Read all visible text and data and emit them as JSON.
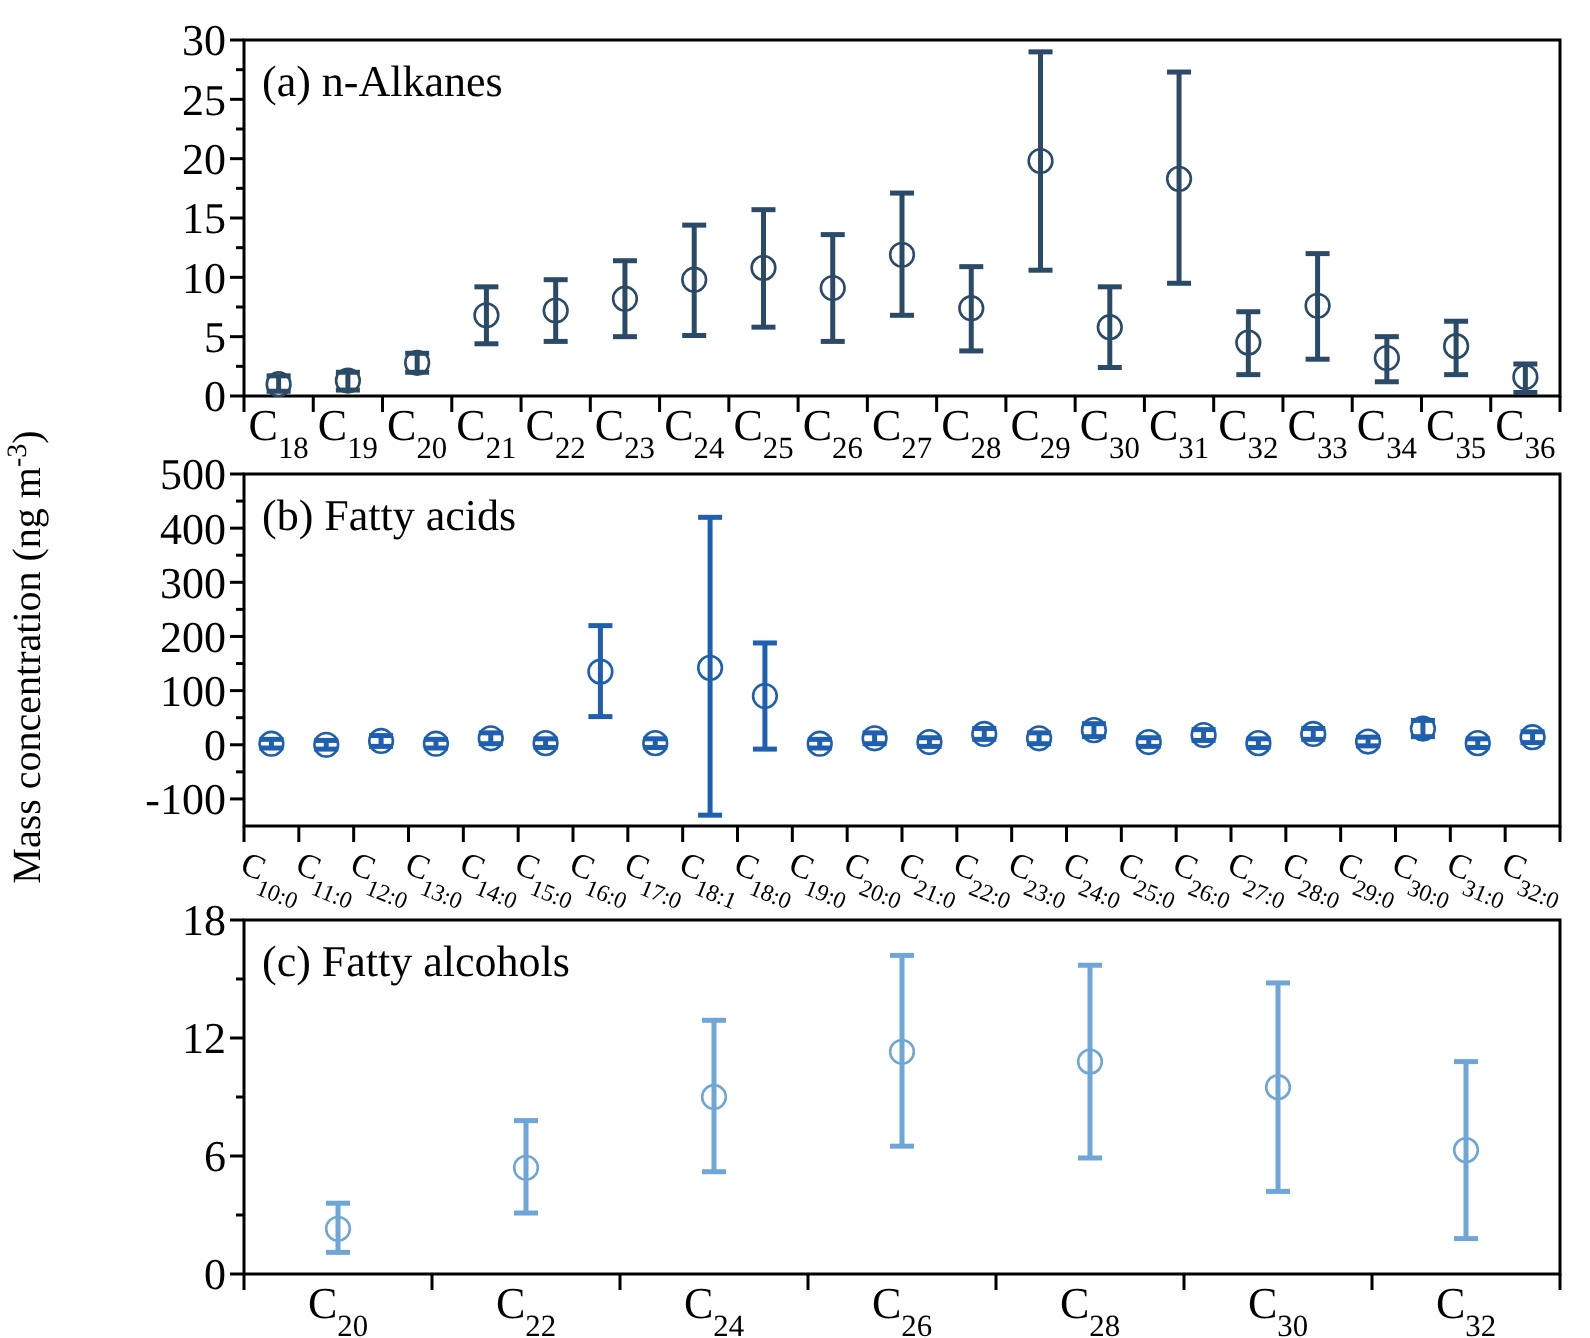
{
  "chart_data": [
    {
      "type": "scatter",
      "title": "(a) n-Alkanes",
      "ylabel": "Mass concentration (ng m$^{-3}$)",
      "categories": [
        "C$_{18}$",
        "C$_{19}$",
        "C$_{20}$",
        "C$_{21}$",
        "C$_{22}$",
        "C$_{23}$",
        "C$_{24}$",
        "C$_{25}$",
        "C$_{26}$",
        "C$_{27}$",
        "C$_{28}$",
        "C$_{29}$",
        "C$_{30}$",
        "C$_{31}$",
        "C$_{32}$",
        "C$_{33}$",
        "C$_{34}$",
        "C$_{35}$",
        "C$_{36}$"
      ],
      "series": [
        {
          "color": "#2a4a68",
          "values": [
            1.0,
            1.3,
            2.8,
            6.8,
            7.2,
            8.2,
            9.8,
            10.8,
            9.1,
            11.9,
            7.4,
            19.8,
            5.8,
            18.3,
            4.5,
            7.6,
            3.2,
            4.2,
            1.6
          ],
          "errors": [
            [
              0.4,
              1.7
            ],
            [
              0.5,
              2.0
            ],
            [
              2.0,
              3.6
            ],
            [
              4.4,
              9.2
            ],
            [
              4.6,
              9.8
            ],
            [
              5.0,
              11.4
            ],
            [
              5.1,
              14.4
            ],
            [
              5.8,
              15.7
            ],
            [
              4.6,
              13.6
            ],
            [
              6.8,
              17.1
            ],
            [
              3.8,
              10.9
            ],
            [
              10.6,
              29.0
            ],
            [
              2.4,
              9.2
            ],
            [
              9.5,
              27.3
            ],
            [
              1.8,
              7.1
            ],
            [
              3.1,
              12.0
            ],
            [
              1.2,
              5.0
            ],
            [
              1.8,
              6.3
            ],
            [
              0.3,
              2.7
            ]
          ]
        }
      ],
      "ylim": [
        0,
        30
      ],
      "yticks": [
        0,
        {
          "value": 2.5,
          "label": null
        },
        5,
        {
          "value": 7.5,
          "label": null
        },
        10,
        {
          "value": 12.5,
          "label": null
        },
        15,
        {
          "value": 17.5,
          "label": null
        },
        20,
        {
          "value": 22.5,
          "label": null
        },
        25,
        {
          "value": 27.5,
          "label": null
        },
        30
      ],
      "marker": "circle"
    },
    {
      "type": "scatter",
      "title": "(b) Fatty acids",
      "categories": [
        "C$_{10:0}$",
        "C$_{11:0}$",
        "C$_{12:0}$",
        "C$_{13:0}$",
        "C$_{14:0}$",
        "C$_{15:0}$",
        "C$_{16:0}$",
        "C$_{17:0}$",
        "C$_{18:1}$",
        "C$_{18:0}$",
        "C$_{19:0}$",
        "C$_{20:0}$",
        "C$_{21:0}$",
        "C$_{22:0}$",
        "C$_{23:0}$",
        "C$_{24:0}$",
        "C$_{25:0}$",
        "C$_{26:0}$",
        "C$_{27:0}$",
        "C$_{28:0}$",
        "C$_{29:0}$",
        "C$_{30:0}$",
        "C$_{31:0}$",
        "C$_{32:0}$"
      ],
      "series": [
        {
          "color": "#1f5fb0",
          "values": [
            2,
            0,
            7,
            2,
            12,
            3,
            135,
            3,
            142,
            90,
            2,
            12,
            5,
            20,
            12,
            27,
            5,
            18,
            3,
            20,
            6,
            30,
            3,
            14
          ],
          "errors": [
            8,
            8,
            10,
            8,
            10,
            8,
            [
              52,
              220
            ],
            8,
            [
              -130,
              420
            ],
            [
              -8,
              188
            ],
            8,
            10,
            8,
            10,
            10,
            12,
            8,
            10,
            8,
            10,
            8,
            15,
            8,
            10
          ]
        }
      ],
      "ylim": [
        -150,
        500
      ],
      "yticks": [
        -100,
        {
          "value": -50,
          "label": null
        },
        0,
        {
          "value": 50,
          "label": null
        },
        100,
        {
          "value": 150,
          "label": null
        },
        200,
        {
          "value": 250,
          "label": null
        },
        300,
        {
          "value": 350,
          "label": null
        },
        400,
        {
          "value": 450,
          "label": null
        },
        500
      ],
      "marker": "circle"
    },
    {
      "type": "scatter",
      "title": "(c) Fatty alcohols",
      "categories": [
        "C$_{20}$",
        "C$_{22}$",
        "C$_{24}$",
        "C$_{26}$",
        "C$_{28}$",
        "C$_{30}$",
        "C$_{32}$"
      ],
      "series": [
        {
          "color": "#6fa6d8",
          "values": [
            2.3,
            5.4,
            9.0,
            11.3,
            10.8,
            9.5,
            6.3
          ],
          "errors": [
            [
              1.1,
              3.6
            ],
            [
              3.1,
              7.8
            ],
            [
              5.2,
              12.9
            ],
            [
              6.5,
              16.2
            ],
            [
              5.9,
              15.7
            ],
            [
              4.2,
              14.8
            ],
            [
              1.8,
              10.8
            ]
          ]
        }
      ],
      "ylim": [
        0,
        18
      ],
      "yticks": [
        0,
        {
          "value": 3,
          "label": null
        },
        6,
        {
          "value": 9,
          "label": null
        },
        12,
        {
          "value": 15,
          "label": null
        },
        18
      ],
      "marker": "circle"
    }
  ]
}
